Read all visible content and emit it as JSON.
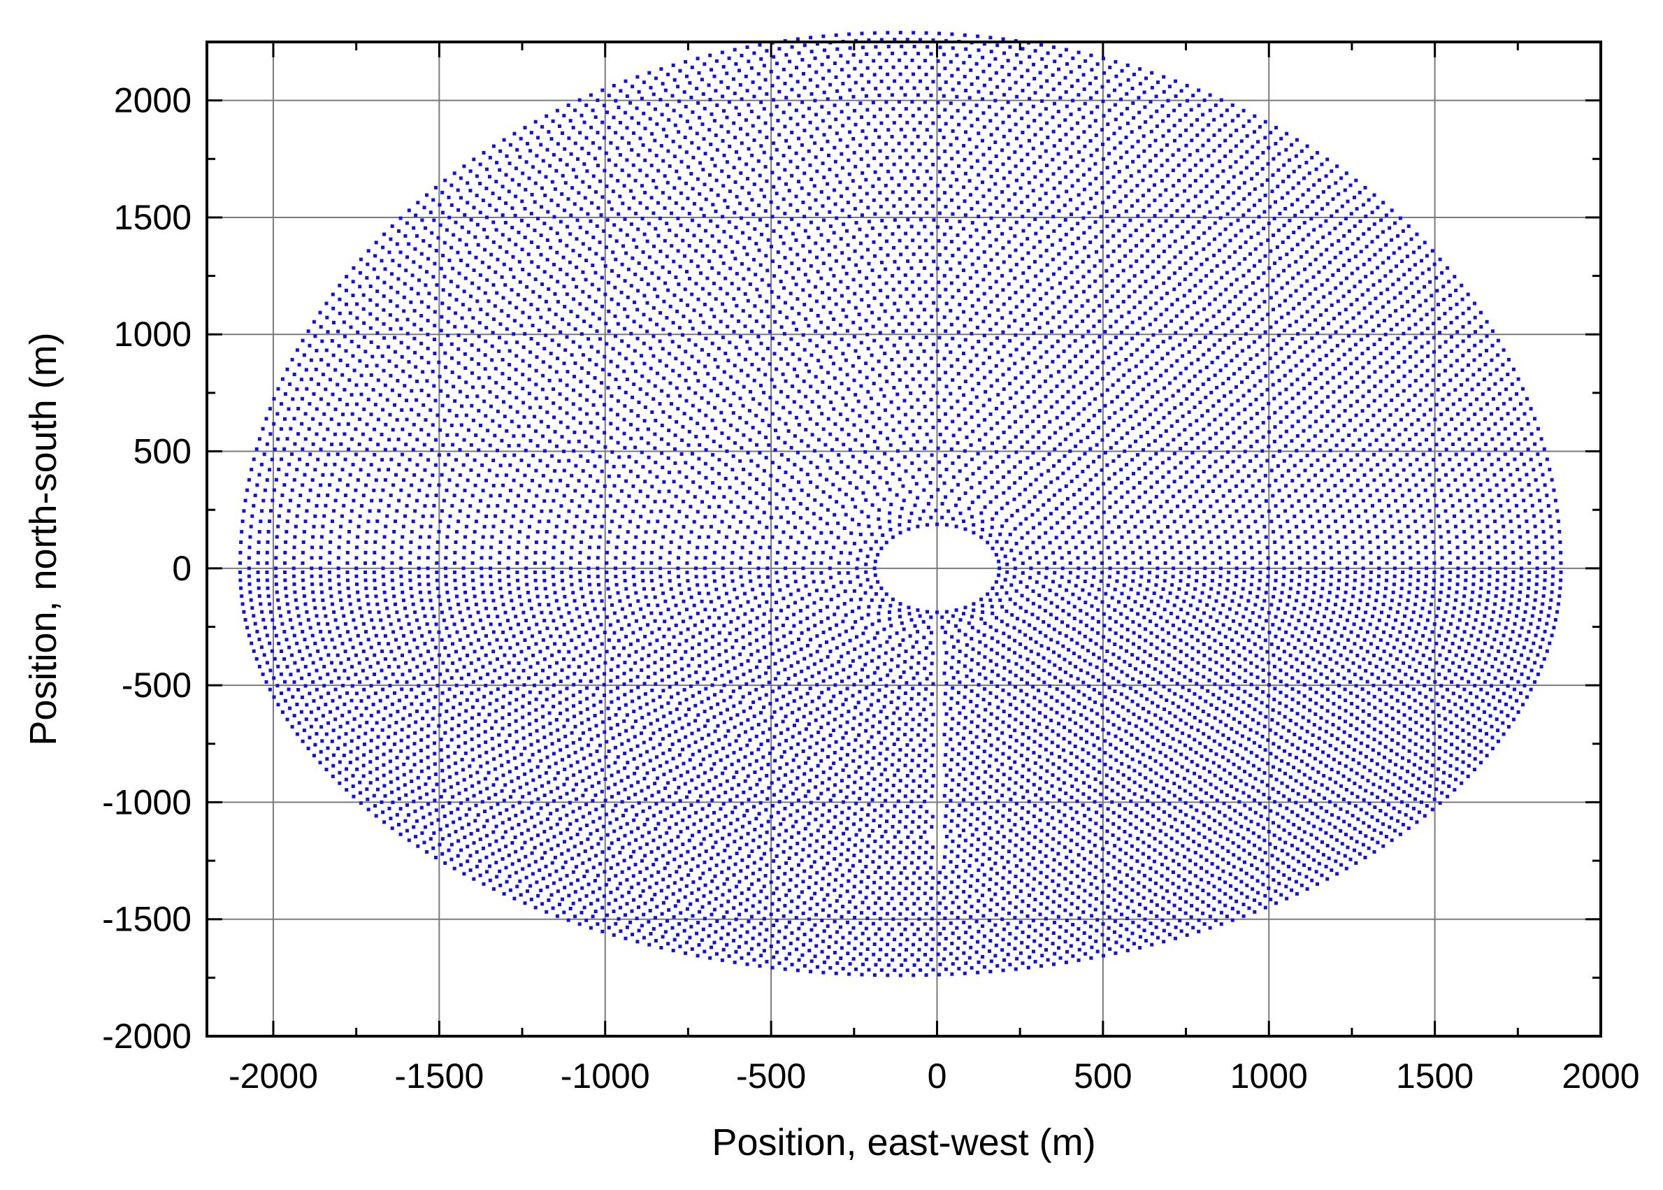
{
  "chart_data": {
    "type": "scatter",
    "title": "",
    "xlabel": "Position, east-west (m)",
    "ylabel": "Position, north-south (m)",
    "xlim": [
      -2200,
      2000
    ],
    "ylim": [
      -2000,
      2250
    ],
    "xticks": [
      -2000,
      -1500,
      -1000,
      -500,
      0,
      500,
      1000,
      1500,
      2000
    ],
    "xtick_labels": [
      "-2000",
      "-1500",
      "-1000",
      "-500",
      "0",
      "500",
      "1000",
      "1500",
      "2000"
    ],
    "yticks": [
      -2000,
      -1500,
      -1000,
      -500,
      0,
      500,
      1000,
      1500,
      2000
    ],
    "ytick_labels": [
      "-2000",
      "-1500",
      "-1000",
      "-500",
      "0",
      "500",
      "1000",
      "1500",
      "2000"
    ],
    "grid": true,
    "marker_color": "#1010ee",
    "field": {
      "description_of_layout": "concentric elliptical rows of heliostat positions",
      "center_x": -110,
      "outer_rx": 1990,
      "outer_north": 2290,
      "outer_south": -1740,
      "inner_hole_rx": 170,
      "inner_hole_ry": 170,
      "ring_count": 72
    }
  }
}
